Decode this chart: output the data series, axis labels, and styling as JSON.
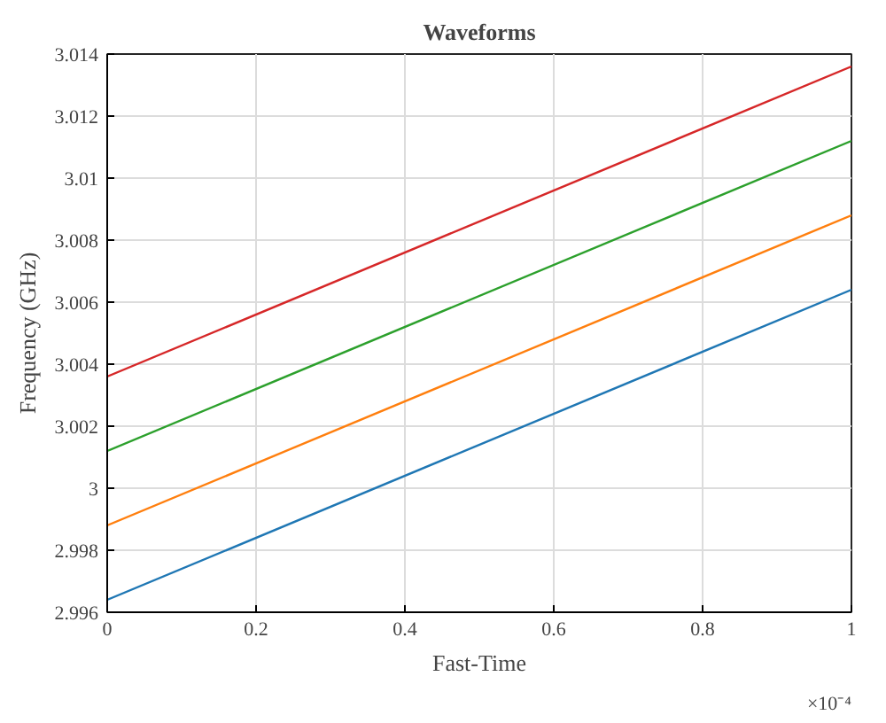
{
  "chart_data": {
    "type": "line",
    "title": "Waveforms",
    "xlabel": "Fast-Time",
    "ylabel": "Frequency (GHz)",
    "x": [
      0,
      1
    ],
    "series": [
      {
        "color": "#1f77b4",
        "values": [
          2.9964,
          3.0064
        ]
      },
      {
        "color": "#ff7f0e",
        "values": [
          2.9988,
          3.0088
        ]
      },
      {
        "color": "#2ca02c",
        "values": [
          3.0012,
          3.0112
        ]
      },
      {
        "color": "#d62728",
        "values": [
          3.0036,
          3.0136
        ]
      }
    ],
    "xlim": [
      0,
      1
    ],
    "ylim": [
      2.996,
      3.014
    ],
    "xticks": [
      0,
      0.2,
      0.4,
      0.6,
      0.8,
      1
    ],
    "yticks": [
      2.996,
      2.998,
      3,
      3.002,
      3.004,
      3.006,
      3.008,
      3.01,
      3.012,
      3.014
    ],
    "annotations": [
      "×10⁻⁴"
    ],
    "grid": true,
    "marker": "none",
    "line_style": "solid"
  }
}
